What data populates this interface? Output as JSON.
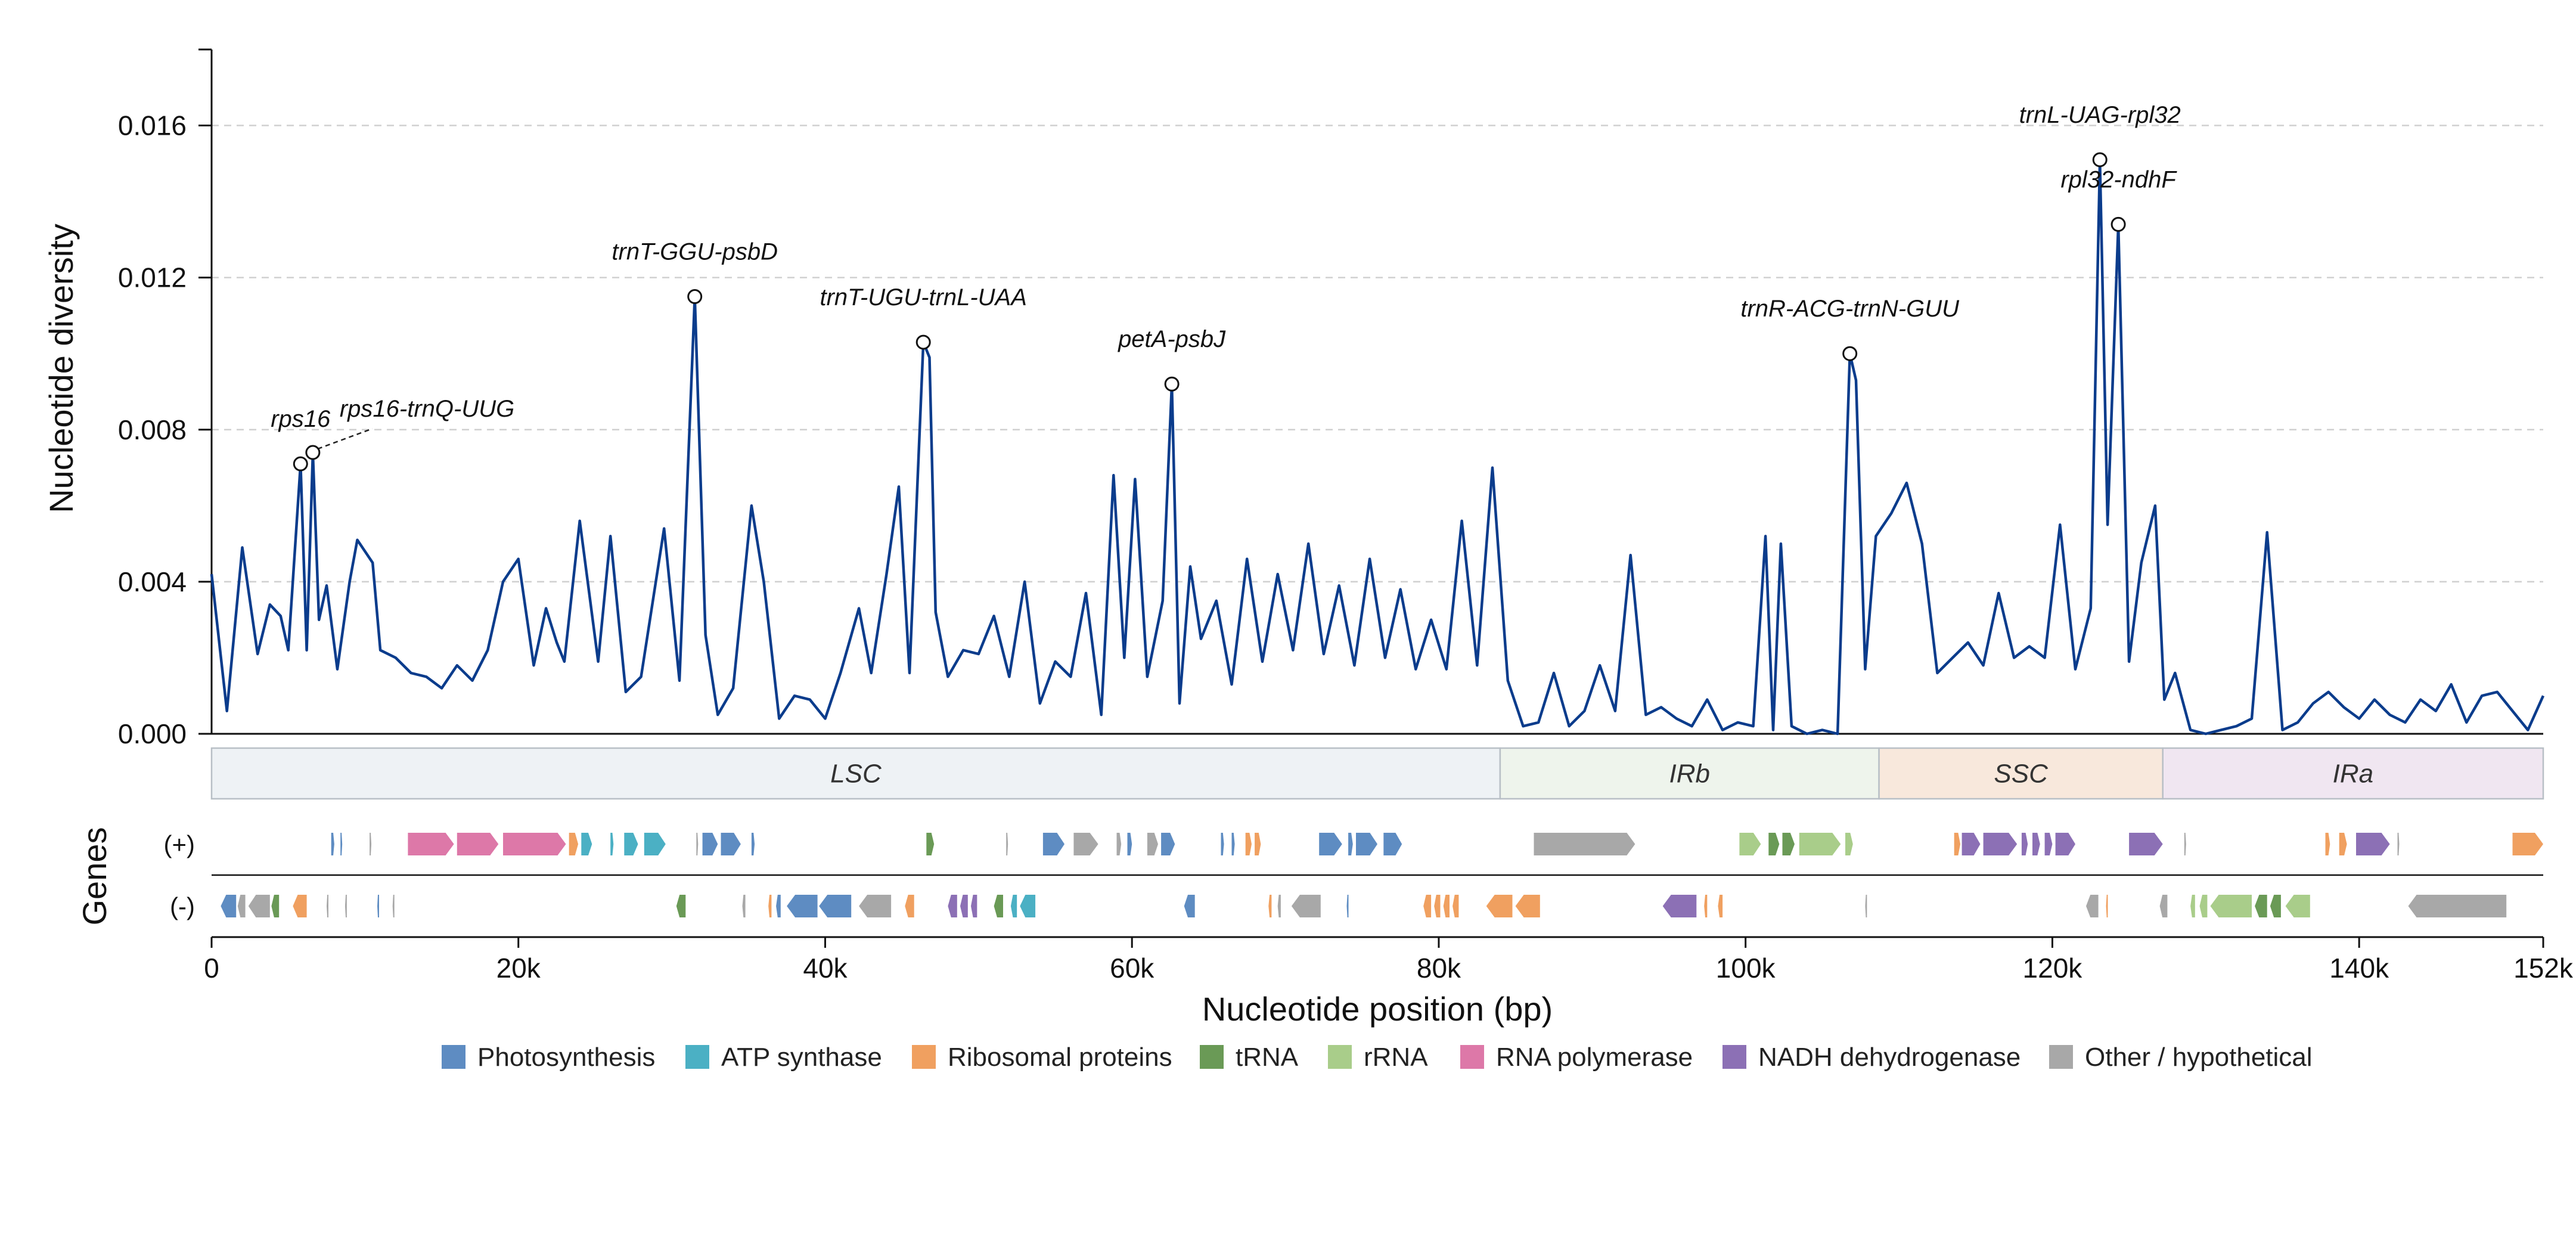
{
  "chart_data": {
    "type": "line",
    "ylabel": "Nucleotide diversity",
    "xlabel": "Nucleotide position (bp)",
    "genes_label": "Genes",
    "strand_labels": {
      "plus": "(+)",
      "minus": "(-)"
    },
    "xlim": [
      0,
      152000
    ],
    "ylim": [
      0,
      0.018
    ],
    "yticks": [
      0.0,
      0.004,
      0.008,
      0.012,
      0.016
    ],
    "ytick_labels": [
      "0.000",
      "0.004",
      "0.008",
      "0.012",
      "0.016"
    ],
    "xticks": [
      0,
      20000,
      40000,
      60000,
      80000,
      100000,
      120000,
      140000,
      152000
    ],
    "xtick_labels": [
      "0",
      "20k",
      "40k",
      "60k",
      "80k",
      "100k",
      "120k",
      "140k",
      "152k"
    ],
    "grid": "horizontal dashed",
    "line_color": "#0b3c8c",
    "series": [
      {
        "x": [
          0,
          1000,
          2000,
          3000,
          3800,
          4500,
          5000,
          5800,
          6200,
          6600,
          7000,
          7500,
          8200,
          9000,
          9500,
          10500,
          11000,
          12000,
          13000,
          14000,
          15000,
          16000,
          17000,
          18000,
          19000,
          20000,
          21000,
          21800,
          22500,
          23000,
          24000,
          25200,
          26000,
          27000,
          28000,
          29500,
          30500,
          31500,
          32200,
          33000,
          34000,
          35200,
          36000,
          37000,
          38000,
          39000,
          40000,
          41000,
          42200,
          43000,
          44000,
          44800,
          45500,
          46400,
          46800,
          47200,
          48000,
          49000,
          50000,
          51000,
          52000,
          53000,
          54000,
          55000,
          56000,
          57000,
          58000,
          58800,
          59500,
          60200,
          61000,
          62000,
          62600,
          63100,
          63800,
          64500,
          65500,
          66500,
          67500,
          68500,
          69500,
          70500,
          71500,
          72500,
          73500,
          74500,
          75500,
          76500,
          77500,
          78500,
          79500,
          80500,
          81500,
          82500,
          83500,
          84500,
          85500,
          86500,
          87500,
          88500,
          89500,
          90500,
          91500,
          92500,
          93500,
          94500,
          95500,
          96500,
          97500,
          98500,
          99500,
          100500,
          101300,
          101800,
          102300,
          103000,
          104000,
          105000,
          106000,
          106800,
          107200,
          107800,
          108500,
          109500,
          110500,
          111500,
          112500,
          113500,
          114500,
          115500,
          116500,
          117500,
          118500,
          119500,
          120500,
          121500,
          122500,
          123100,
          123600,
          124300,
          125000,
          125800,
          126700,
          127300,
          128000,
          129000,
          130000,
          131000,
          132000,
          133000,
          134000,
          135000,
          136000,
          137000,
          138000,
          139000,
          140000,
          141000,
          142000,
          143000,
          144000,
          145000,
          146000,
          147000,
          148000,
          149000,
          150000,
          151000,
          152000
        ],
        "y": [
          0.0042,
          0.0006,
          0.0049,
          0.0021,
          0.0034,
          0.0031,
          0.0022,
          0.0071,
          0.0022,
          0.0074,
          0.003,
          0.0039,
          0.0017,
          0.004,
          0.0051,
          0.0045,
          0.0022,
          0.002,
          0.0016,
          0.0015,
          0.0012,
          0.0018,
          0.0014,
          0.0022,
          0.004,
          0.0046,
          0.0018,
          0.0033,
          0.0024,
          0.0019,
          0.0056,
          0.0019,
          0.0052,
          0.0011,
          0.0015,
          0.0054,
          0.0014,
          0.0115,
          0.0026,
          0.0005,
          0.0012,
          0.006,
          0.004,
          0.0004,
          0.001,
          0.0009,
          0.0004,
          0.0016,
          0.0033,
          0.0016,
          0.0042,
          0.0065,
          0.0016,
          0.0103,
          0.0099,
          0.0032,
          0.0015,
          0.0022,
          0.0021,
          0.0031,
          0.0015,
          0.004,
          0.0008,
          0.0019,
          0.0015,
          0.0037,
          0.0005,
          0.0068,
          0.002,
          0.0067,
          0.0015,
          0.0035,
          0.0092,
          0.0008,
          0.0044,
          0.0025,
          0.0035,
          0.0013,
          0.0046,
          0.0019,
          0.0042,
          0.0022,
          0.005,
          0.0021,
          0.0039,
          0.0018,
          0.0046,
          0.002,
          0.0038,
          0.0017,
          0.003,
          0.0017,
          0.0056,
          0.0018,
          0.007,
          0.0014,
          0.0002,
          0.0003,
          0.0016,
          0.0002,
          0.0006,
          0.0018,
          0.0006,
          0.0047,
          0.0005,
          0.0007,
          0.0004,
          0.0002,
          0.0009,
          0.0001,
          0.0003,
          0.0002,
          0.0052,
          0.0001,
          0.005,
          0.0002,
          0.0,
          0.0001,
          0.0,
          0.01,
          0.0093,
          0.0017,
          0.0052,
          0.0058,
          0.0066,
          0.005,
          0.0016,
          0.002,
          0.0024,
          0.0018,
          0.0037,
          0.002,
          0.0023,
          0.002,
          0.0055,
          0.0017,
          0.0033,
          0.0151,
          0.0055,
          0.0134,
          0.0019,
          0.0045,
          0.006,
          0.0009,
          0.0016,
          0.0001,
          0.0,
          0.0001,
          0.0002,
          0.0004,
          0.0053,
          0.0001,
          0.0003,
          0.0008,
          0.0011,
          0.0007,
          0.0004,
          0.0009,
          0.0005,
          0.0003,
          0.0009,
          0.0006,
          0.0013,
          0.0003,
          0.001,
          0.0011,
          0.0006,
          0.0001,
          0.001
        ]
      }
    ],
    "peaks": [
      {
        "label": "rps16",
        "x": 5800,
        "y": 0.0071
      },
      {
        "label": "rps16-trnQ-UUG",
        "x": 6600,
        "y": 0.0074
      },
      {
        "label": "trnT-GGU-psbD",
        "x": 31500,
        "y": 0.0115
      },
      {
        "label": "trnT-UGU-trnL-UAA",
        "x": 46400,
        "y": 0.0103
      },
      {
        "label": "petA-psbJ",
        "x": 62600,
        "y": 0.0092
      },
      {
        "label": "trnR-ACG-trnN-GUU",
        "x": 106800,
        "y": 0.01
      },
      {
        "label": "trnL-UAG-rpl32",
        "x": 123100,
        "y": 0.0151
      },
      {
        "label": "rpl32-ndhF",
        "x": 124300,
        "y": 0.0134
      }
    ],
    "regions": [
      {
        "label": "LSC",
        "start": 0,
        "end": 84000,
        "color": "#eef2f5"
      },
      {
        "label": "IRb",
        "start": 84000,
        "end": 108700,
        "color": "#eef4ec"
      },
      {
        "label": "SSC",
        "start": 108700,
        "end": 127200,
        "color": "#f8e8dc"
      },
      {
        "label": "IRa",
        "start": 127200,
        "end": 152000,
        "color": "#f0e6f1"
      }
    ],
    "legend": [
      {
        "label": "Photosynthesis",
        "color": "#5e8cc2"
      },
      {
        "label": "ATP synthase",
        "color": "#4bb0c4"
      },
      {
        "label": "Ribosomal proteins",
        "color": "#f0a060"
      },
      {
        "label": "tRNA",
        "color": "#6a9a56"
      },
      {
        "label": "rRNA",
        "color": "#a9cd8a"
      },
      {
        "label": "RNA polymerase",
        "color": "#dd78a8"
      },
      {
        "label": "NADH dehydrogenase",
        "color": "#8c70b5"
      },
      {
        "label": "Other / hypothetical",
        "color": "#a8a8a8"
      }
    ],
    "genes_plus": [
      {
        "s": 7800,
        "e": 8000,
        "c": "Photosynthesis"
      },
      {
        "s": 8400,
        "e": 8500,
        "c": "Photosynthesis"
      },
      {
        "s": 10300,
        "e": 10400,
        "c": "Other / hypothetical"
      },
      {
        "s": 12800,
        "e": 15800,
        "c": "RNA polymerase"
      },
      {
        "s": 16000,
        "e": 18700,
        "c": "RNA polymerase"
      },
      {
        "s": 19000,
        "e": 23100,
        "c": "RNA polymerase"
      },
      {
        "s": 23300,
        "e": 23900,
        "c": "Ribosomal proteins"
      },
      {
        "s": 24100,
        "e": 24800,
        "c": "ATP synthase"
      },
      {
        "s": 26000,
        "e": 26200,
        "c": "ATP synthase"
      },
      {
        "s": 26900,
        "e": 27800,
        "c": "ATP synthase"
      },
      {
        "s": 28200,
        "e": 29600,
        "c": "ATP synthase"
      },
      {
        "s": 31600,
        "e": 31700,
        "c": "Other / hypothetical"
      },
      {
        "s": 32000,
        "e": 33000,
        "c": "Photosynthesis"
      },
      {
        "s": 33200,
        "e": 34500,
        "c": "Photosynthesis"
      },
      {
        "s": 35200,
        "e": 35400,
        "c": "Photosynthesis"
      },
      {
        "s": 46600,
        "e": 47100,
        "c": "tRNA"
      },
      {
        "s": 51800,
        "e": 51900,
        "c": "Other / hypothetical"
      },
      {
        "s": 54200,
        "e": 55600,
        "c": "Photosynthesis"
      },
      {
        "s": 56200,
        "e": 57800,
        "c": "Other / hypothetical"
      },
      {
        "s": 59000,
        "e": 59300,
        "c": "Other / hypothetical"
      },
      {
        "s": 59700,
        "e": 60000,
        "c": "Photosynthesis"
      },
      {
        "s": 61000,
        "e": 61700,
        "c": "Other / hypothetical"
      },
      {
        "s": 61900,
        "e": 62800,
        "c": "Photosynthesis"
      },
      {
        "s": 65800,
        "e": 66000,
        "c": "Photosynthesis"
      },
      {
        "s": 66500,
        "e": 66700,
        "c": "Photosynthesis"
      },
      {
        "s": 67400,
        "e": 67800,
        "c": "Ribosomal proteins"
      },
      {
        "s": 68000,
        "e": 68400,
        "c": "Ribosomal proteins"
      },
      {
        "s": 72200,
        "e": 73700,
        "c": "Photosynthesis"
      },
      {
        "s": 74100,
        "e": 74400,
        "c": "Photosynthesis"
      },
      {
        "s": 74600,
        "e": 76000,
        "c": "Photosynthesis"
      },
      {
        "s": 76400,
        "e": 77600,
        "c": "Photosynthesis"
      },
      {
        "s": 86200,
        "e": 92800,
        "c": "Other / hypothetical"
      },
      {
        "s": 99600,
        "e": 101000,
        "c": "rRNA"
      },
      {
        "s": 101500,
        "e": 102200,
        "c": "tRNA"
      },
      {
        "s": 102400,
        "e": 103200,
        "c": "tRNA"
      },
      {
        "s": 103500,
        "e": 106200,
        "c": "rRNA"
      },
      {
        "s": 106500,
        "e": 107000,
        "c": "rRNA"
      },
      {
        "s": 113600,
        "e": 114000,
        "c": "Ribosomal proteins"
      },
      {
        "s": 114100,
        "e": 115300,
        "c": "NADH dehydrogenase"
      },
      {
        "s": 115500,
        "e": 117700,
        "c": "NADH dehydrogenase"
      },
      {
        "s": 118000,
        "e": 118400,
        "c": "NADH dehydrogenase"
      },
      {
        "s": 118700,
        "e": 119200,
        "c": "NADH dehydrogenase"
      },
      {
        "s": 119500,
        "e": 120000,
        "c": "NADH dehydrogenase"
      },
      {
        "s": 120200,
        "e": 121500,
        "c": "NADH dehydrogenase"
      },
      {
        "s": 125000,
        "e": 127200,
        "c": "NADH dehydrogenase"
      },
      {
        "s": 128600,
        "e": 128700,
        "c": "Other / hypothetical"
      },
      {
        "s": 137800,
        "e": 138100,
        "c": "Ribosomal proteins"
      },
      {
        "s": 138700,
        "e": 139200,
        "c": "Ribosomal proteins"
      },
      {
        "s": 139800,
        "e": 142000,
        "c": "NADH dehydrogenase"
      },
      {
        "s": 142500,
        "e": 142600,
        "c": "Other / hypothetical"
      },
      {
        "s": 150000,
        "e": 152000,
        "c": "Ribosomal proteins"
      }
    ],
    "genes_minus": [
      {
        "s": 600,
        "e": 1600,
        "c": "Photosynthesis"
      },
      {
        "s": 1700,
        "e": 2200,
        "c": "Other / hypothetical"
      },
      {
        "s": 2400,
        "e": 3800,
        "c": "Other / hypothetical"
      },
      {
        "s": 3900,
        "e": 4400,
        "c": "tRNA"
      },
      {
        "s": 5300,
        "e": 6200,
        "c": "Ribosomal proteins"
      },
      {
        "s": 7500,
        "e": 7600,
        "c": "Other / hypothetical"
      },
      {
        "s": 8700,
        "e": 8800,
        "c": "Other / hypothetical"
      },
      {
        "s": 10800,
        "e": 10900,
        "c": "Photosynthesis"
      },
      {
        "s": 11800,
        "e": 11900,
        "c": "Other / hypothetical"
      },
      {
        "s": 30300,
        "e": 30900,
        "c": "tRNA"
      },
      {
        "s": 34600,
        "e": 34800,
        "c": "Other / hypothetical"
      },
      {
        "s": 36300,
        "e": 36500,
        "c": "Ribosomal proteins"
      },
      {
        "s": 36800,
        "e": 37100,
        "c": "Photosynthesis"
      },
      {
        "s": 37500,
        "e": 39500,
        "c": "Photosynthesis"
      },
      {
        "s": 39600,
        "e": 41700,
        "c": "Photosynthesis"
      },
      {
        "s": 42200,
        "e": 44300,
        "c": "Other / hypothetical"
      },
      {
        "s": 45200,
        "e": 45800,
        "c": "Ribosomal proteins"
      },
      {
        "s": 48000,
        "e": 48600,
        "c": "NADH dehydrogenase"
      },
      {
        "s": 48800,
        "e": 49300,
        "c": "NADH dehydrogenase"
      },
      {
        "s": 49500,
        "e": 49900,
        "c": "NADH dehydrogenase"
      },
      {
        "s": 51000,
        "e": 51600,
        "c": "tRNA"
      },
      {
        "s": 52100,
        "e": 52500,
        "c": "ATP synthase"
      },
      {
        "s": 52700,
        "e": 53700,
        "c": "ATP synthase"
      },
      {
        "s": 63400,
        "e": 64100,
        "c": "Photosynthesis"
      },
      {
        "s": 68900,
        "e": 69100,
        "c": "Ribosomal proteins"
      },
      {
        "s": 69500,
        "e": 69700,
        "c": "Other / hypothetical"
      },
      {
        "s": 70400,
        "e": 72300,
        "c": "Other / hypothetical"
      },
      {
        "s": 74000,
        "e": 74100,
        "c": "Photosynthesis"
      },
      {
        "s": 79000,
        "e": 79500,
        "c": "Ribosomal proteins"
      },
      {
        "s": 79700,
        "e": 80100,
        "c": "Ribosomal proteins"
      },
      {
        "s": 80300,
        "e": 80700,
        "c": "Ribosomal proteins"
      },
      {
        "s": 80900,
        "e": 81300,
        "c": "Ribosomal proteins"
      },
      {
        "s": 83100,
        "e": 84800,
        "c": "Ribosomal proteins"
      },
      {
        "s": 85000,
        "e": 86600,
        "c": "Ribosomal proteins"
      },
      {
        "s": 94600,
        "e": 96800,
        "c": "NADH dehydrogenase"
      },
      {
        "s": 97300,
        "e": 97500,
        "c": "Ribosomal proteins"
      },
      {
        "s": 98200,
        "e": 98500,
        "c": "Ribosomal proteins"
      },
      {
        "s": 107800,
        "e": 107900,
        "c": "Other / hypothetical"
      },
      {
        "s": 122200,
        "e": 123000,
        "c": "Other / hypothetical"
      },
      {
        "s": 123500,
        "e": 123600,
        "c": "Ribosomal proteins"
      },
      {
        "s": 127000,
        "e": 127500,
        "c": "Other / hypothetical"
      },
      {
        "s": 129000,
        "e": 129300,
        "c": "rRNA"
      },
      {
        "s": 129600,
        "e": 130100,
        "c": "rRNA"
      },
      {
        "s": 130300,
        "e": 133000,
        "c": "rRNA"
      },
      {
        "s": 133200,
        "e": 134000,
        "c": "tRNA"
      },
      {
        "s": 134200,
        "e": 134900,
        "c": "tRNA"
      },
      {
        "s": 135200,
        "e": 136800,
        "c": "rRNA"
      },
      {
        "s": 143200,
        "e": 149600,
        "c": "Other / hypothetical"
      }
    ]
  }
}
